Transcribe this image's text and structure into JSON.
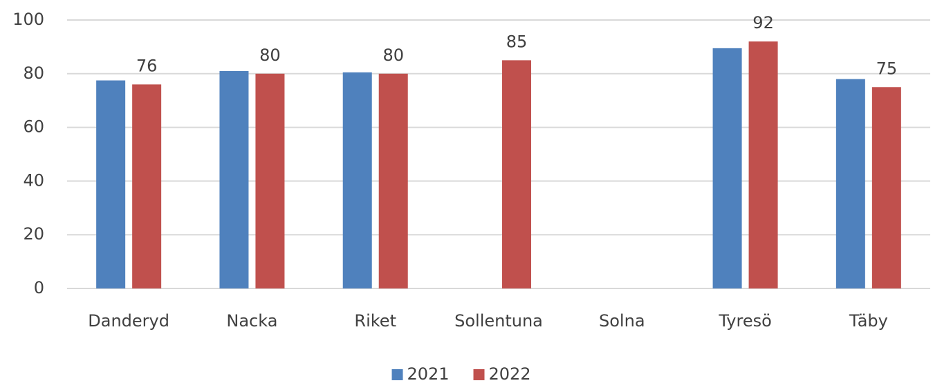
{
  "chart_data": {
    "type": "bar",
    "categories": [
      "Danderyd",
      "Nacka",
      "Riket",
      "Sollentuna",
      "Solna",
      "Tyresö",
      "Täby"
    ],
    "series": [
      {
        "name": "2021",
        "color": "#4f81bd",
        "values": [
          77.5,
          81,
          80.5,
          null,
          null,
          89.5,
          78
        ],
        "data_labels": false
      },
      {
        "name": "2022",
        "color": "#c0504d",
        "values": [
          76,
          80,
          80,
          85,
          null,
          92,
          75
        ],
        "data_labels": true
      }
    ],
    "ylim": [
      0,
      100
    ],
    "yticks": [
      0,
      20,
      40,
      60,
      80,
      100
    ],
    "grid": true,
    "legend": "bottom"
  }
}
